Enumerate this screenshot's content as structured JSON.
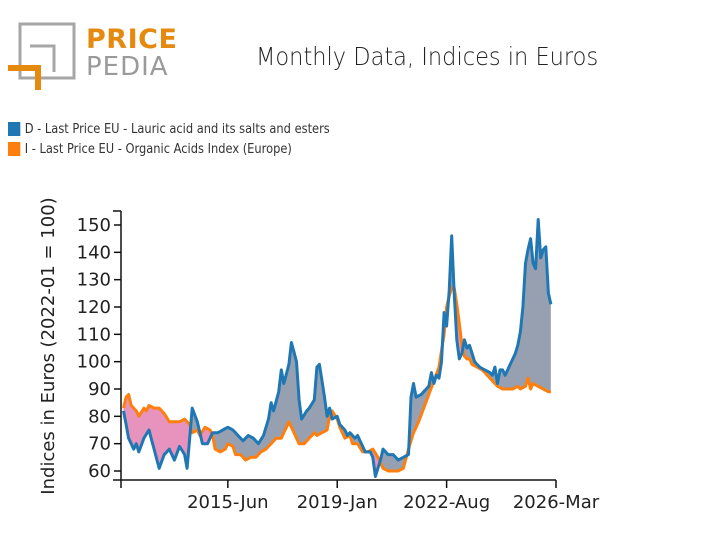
{
  "logo": {
    "word1": "PRICE",
    "word2": "PEDIA",
    "accent": "#e68a0f",
    "gray": "#9a9a9a"
  },
  "chart_data": {
    "type": "area",
    "title": "Monthly Data, Indices in Euros",
    "xlabel": "",
    "ylabel": "Indices in Euros (2022-01 = 100)",
    "ylim": [
      58,
      155
    ],
    "yticks": [
      60,
      70,
      80,
      90,
      100,
      110,
      120,
      130,
      140,
      150
    ],
    "xrange": [
      "2011-12",
      "2026-03"
    ],
    "xticks": [
      {
        "date": "2011-12",
        "label": ""
      },
      {
        "date": "2015-06",
        "label": "2015-Jun"
      },
      {
        "date": "2019-01",
        "label": "2019-Jan"
      },
      {
        "date": "2022-08",
        "label": "2022-Aug"
      },
      {
        "date": "2026-03",
        "label": "2026-Mar"
      }
    ],
    "legend_position": "top-left",
    "fill_colors": {
      "d_above_i": "#97a0b1",
      "i_above_d": "#e892be"
    },
    "series": [
      {
        "name": "D - Last Price EU - Lauric acid and its salts and esters",
        "color": "#1f77b4",
        "points": [
          [
            "2012-01",
            82
          ],
          [
            "2012-03",
            72
          ],
          [
            "2012-05",
            68
          ],
          [
            "2012-06",
            70
          ],
          [
            "2012-07",
            67
          ],
          [
            "2012-09",
            72
          ],
          [
            "2012-11",
            75
          ],
          [
            "2013-01",
            68
          ],
          [
            "2013-03",
            61
          ],
          [
            "2013-05",
            66
          ],
          [
            "2013-07",
            68
          ],
          [
            "2013-09",
            64
          ],
          [
            "2013-11",
            69
          ],
          [
            "2014-01",
            66
          ],
          [
            "2014-02",
            61
          ],
          [
            "2014-03",
            72
          ],
          [
            "2014-04",
            83
          ],
          [
            "2014-06",
            78
          ],
          [
            "2014-08",
            70
          ],
          [
            "2014-10",
            70
          ],
          [
            "2014-12",
            74
          ],
          [
            "2015-02",
            74
          ],
          [
            "2015-04",
            75
          ],
          [
            "2015-06",
            76
          ],
          [
            "2015-08",
            75
          ],
          [
            "2015-10",
            73
          ],
          [
            "2015-12",
            71
          ],
          [
            "2016-02",
            73
          ],
          [
            "2016-04",
            72
          ],
          [
            "2016-06",
            70
          ],
          [
            "2016-08",
            73
          ],
          [
            "2016-10",
            79
          ],
          [
            "2016-11",
            85
          ],
          [
            "2016-12",
            82
          ],
          [
            "2017-02",
            89
          ],
          [
            "2017-03",
            97
          ],
          [
            "2017-04",
            92
          ],
          [
            "2017-06",
            99
          ],
          [
            "2017-07",
            107
          ],
          [
            "2017-09",
            100
          ],
          [
            "2017-10",
            86
          ],
          [
            "2017-11",
            79
          ],
          [
            "2018-01",
            82
          ],
          [
            "2018-02",
            83
          ],
          [
            "2018-04",
            86
          ],
          [
            "2018-05",
            98
          ],
          [
            "2018-06",
            99
          ],
          [
            "2018-08",
            87
          ],
          [
            "2018-09",
            80
          ],
          [
            "2018-10",
            83
          ],
          [
            "2018-11",
            79
          ],
          [
            "2019-01",
            80
          ],
          [
            "2019-02",
            77
          ],
          [
            "2019-04",
            75
          ],
          [
            "2019-05",
            73
          ],
          [
            "2019-06",
            74
          ],
          [
            "2019-08",
            72
          ],
          [
            "2019-09",
            73
          ],
          [
            "2019-11",
            69
          ],
          [
            "2019-12",
            67
          ],
          [
            "2020-02",
            67
          ],
          [
            "2020-03",
            65
          ],
          [
            "2020-04",
            58
          ],
          [
            "2020-06",
            64
          ],
          [
            "2020-07",
            68
          ],
          [
            "2020-09",
            66
          ],
          [
            "2020-11",
            66
          ],
          [
            "2021-01",
            64
          ],
          [
            "2021-03",
            65
          ],
          [
            "2021-05",
            66
          ],
          [
            "2021-06",
            87
          ],
          [
            "2021-07",
            92
          ],
          [
            "2021-08",
            87
          ],
          [
            "2021-10",
            88
          ],
          [
            "2021-12",
            90
          ],
          [
            "2022-01",
            91
          ],
          [
            "2022-02",
            96
          ],
          [
            "2022-03",
            92
          ],
          [
            "2022-04",
            95
          ],
          [
            "2022-05",
            94
          ],
          [
            "2022-06",
            100
          ],
          [
            "2022-07",
            118
          ],
          [
            "2022-08",
            113
          ],
          [
            "2022-09",
            126
          ],
          [
            "2022-10",
            146
          ],
          [
            "2022-11",
            125
          ],
          [
            "2022-12",
            108
          ],
          [
            "2023-01",
            101
          ],
          [
            "2023-02",
            103
          ],
          [
            "2023-03",
            108
          ],
          [
            "2023-04",
            105
          ],
          [
            "2023-05",
            106
          ],
          [
            "2023-06",
            103
          ],
          [
            "2023-07",
            100
          ],
          [
            "2023-09",
            98
          ],
          [
            "2023-11",
            97
          ],
          [
            "2024-01",
            96
          ],
          [
            "2024-02",
            95
          ],
          [
            "2024-03",
            98
          ],
          [
            "2024-04",
            92
          ],
          [
            "2024-05",
            97
          ],
          [
            "2024-06",
            97
          ],
          [
            "2024-07",
            95
          ],
          [
            "2024-08",
            97
          ],
          [
            "2024-09",
            99
          ],
          [
            "2024-10",
            101
          ],
          [
            "2024-11",
            103
          ],
          [
            "2024-12",
            106
          ],
          [
            "2025-01",
            111
          ],
          [
            "2025-02",
            120
          ],
          [
            "2025-03",
            136
          ],
          [
            "2025-04",
            141
          ],
          [
            "2025-05",
            145
          ],
          [
            "2025-06",
            136
          ],
          [
            "2025-07",
            134
          ],
          [
            "2025-08",
            152
          ],
          [
            "2025-09",
            138
          ],
          [
            "2025-10",
            141
          ],
          [
            "2025-11",
            142
          ],
          [
            "2025-12",
            125
          ],
          [
            "2026-01",
            121
          ]
        ]
      },
      {
        "name": "I - Last Price EU - Organic Acids Index (Europe)",
        "color": "#ff7f0e",
        "points": [
          [
            "2012-01",
            83
          ],
          [
            "2012-02",
            87
          ],
          [
            "2012-03",
            88
          ],
          [
            "2012-04",
            84
          ],
          [
            "2012-06",
            82
          ],
          [
            "2012-07",
            80
          ],
          [
            "2012-09",
            83
          ],
          [
            "2012-10",
            82
          ],
          [
            "2012-11",
            84
          ],
          [
            "2013-01",
            83
          ],
          [
            "2013-03",
            83
          ],
          [
            "2013-05",
            81
          ],
          [
            "2013-07",
            78
          ],
          [
            "2013-09",
            78
          ],
          [
            "2013-11",
            78
          ],
          [
            "2014-01",
            79
          ],
          [
            "2014-03",
            77
          ],
          [
            "2014-04",
            74
          ],
          [
            "2014-06",
            75
          ],
          [
            "2014-07",
            73
          ],
          [
            "2014-09",
            76
          ],
          [
            "2014-11",
            75
          ],
          [
            "2014-12",
            73
          ],
          [
            "2015-01",
            68
          ],
          [
            "2015-03",
            67
          ],
          [
            "2015-05",
            68
          ],
          [
            "2015-06",
            70
          ],
          [
            "2015-08",
            69
          ],
          [
            "2015-09",
            66
          ],
          [
            "2015-11",
            66
          ],
          [
            "2016-01",
            64
          ],
          [
            "2016-03",
            65
          ],
          [
            "2016-05",
            65
          ],
          [
            "2016-07",
            67
          ],
          [
            "2016-09",
            68
          ],
          [
            "2016-11",
            70
          ],
          [
            "2017-01",
            72
          ],
          [
            "2017-03",
            72
          ],
          [
            "2017-05",
            76
          ],
          [
            "2017-06",
            78
          ],
          [
            "2017-07",
            76
          ],
          [
            "2017-09",
            72
          ],
          [
            "2017-10",
            70
          ],
          [
            "2017-12",
            70
          ],
          [
            "2018-02",
            72
          ],
          [
            "2018-04",
            74
          ],
          [
            "2018-05",
            73
          ],
          [
            "2018-07",
            74
          ],
          [
            "2018-09",
            75
          ],
          [
            "2018-10",
            80
          ],
          [
            "2018-11",
            82
          ],
          [
            "2019-01",
            79
          ],
          [
            "2019-02",
            76
          ],
          [
            "2019-04",
            72
          ],
          [
            "2019-06",
            73
          ],
          [
            "2019-07",
            70
          ],
          [
            "2019-09",
            70
          ],
          [
            "2019-11",
            67
          ],
          [
            "2020-01",
            67
          ],
          [
            "2020-03",
            68
          ],
          [
            "2020-05",
            65
          ],
          [
            "2020-07",
            61
          ],
          [
            "2020-09",
            60
          ],
          [
            "2020-11",
            60
          ],
          [
            "2021-01",
            60
          ],
          [
            "2021-03",
            61
          ],
          [
            "2021-05",
            68
          ],
          [
            "2021-07",
            74
          ],
          [
            "2021-09",
            78
          ],
          [
            "2021-11",
            83
          ],
          [
            "2022-01",
            88
          ],
          [
            "2022-03",
            93
          ],
          [
            "2022-05",
            98
          ],
          [
            "2022-07",
            110
          ],
          [
            "2022-08",
            120
          ],
          [
            "2022-09",
            124
          ],
          [
            "2022-10",
            127
          ],
          [
            "2022-11",
            127
          ],
          [
            "2022-12",
            121
          ],
          [
            "2023-01",
            114
          ],
          [
            "2023-02",
            106
          ],
          [
            "2023-03",
            102
          ],
          [
            "2023-04",
            101
          ],
          [
            "2023-05",
            101
          ],
          [
            "2023-06",
            99
          ],
          [
            "2023-08",
            98
          ],
          [
            "2023-10",
            97
          ],
          [
            "2023-12",
            95
          ],
          [
            "2024-02",
            93
          ],
          [
            "2024-04",
            91
          ],
          [
            "2024-06",
            90
          ],
          [
            "2024-08",
            90
          ],
          [
            "2024-10",
            90
          ],
          [
            "2024-12",
            91
          ],
          [
            "2025-01",
            90
          ],
          [
            "2025-03",
            91
          ],
          [
            "2025-04",
            94
          ],
          [
            "2025-05",
            90
          ],
          [
            "2025-06",
            92
          ],
          [
            "2025-08",
            91
          ],
          [
            "2025-10",
            90
          ],
          [
            "2025-12",
            89
          ],
          [
            "2026-01",
            89
          ]
        ]
      }
    ]
  }
}
